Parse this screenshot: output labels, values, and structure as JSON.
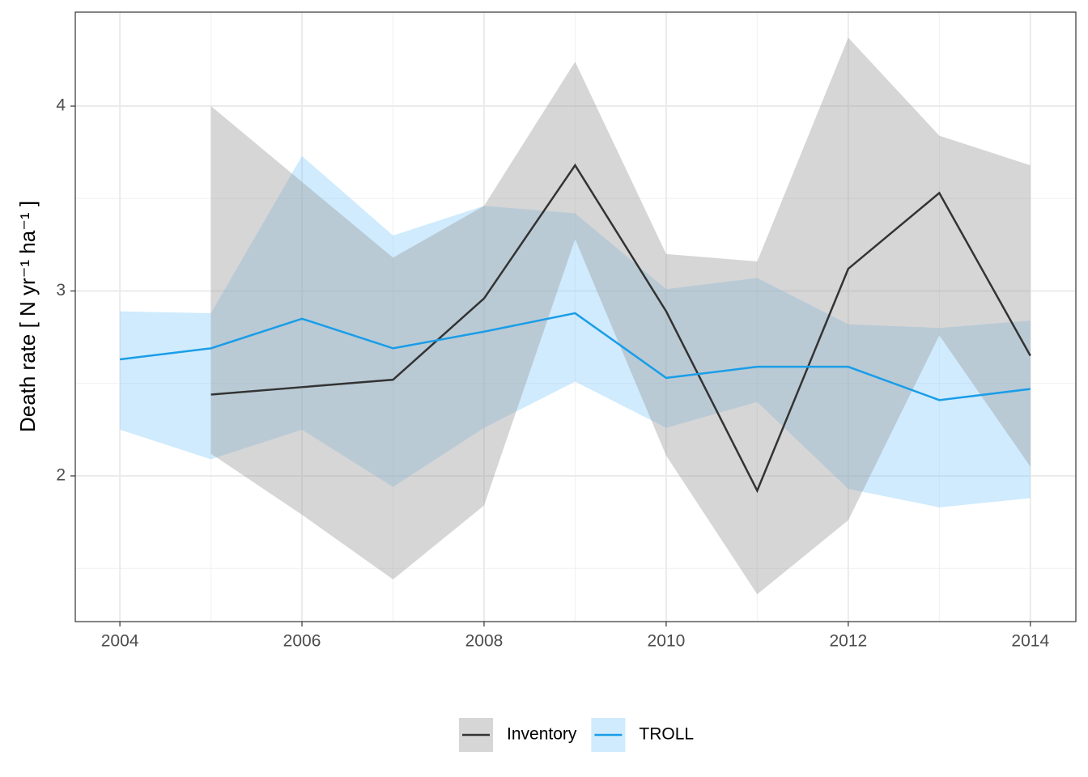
{
  "chart_data": {
    "type": "line",
    "y_label": "Death rate [ N yr⁻¹ ha⁻¹ ]",
    "x": [
      2004,
      2005,
      2006,
      2007,
      2008,
      2009,
      2010,
      2011,
      2012,
      2013,
      2014
    ],
    "series": [
      {
        "name": "Inventory",
        "color": "#333333",
        "band_color": "#999999",
        "values": [
          null,
          2.44,
          2.48,
          2.52,
          2.96,
          3.68,
          2.89,
          1.92,
          3.12,
          3.53,
          2.65
        ],
        "upper": [
          null,
          4.0,
          3.59,
          3.18,
          3.46,
          4.24,
          3.2,
          3.16,
          4.37,
          3.84,
          3.68
        ],
        "lower": [
          null,
          2.12,
          1.79,
          1.44,
          1.84,
          3.28,
          2.11,
          1.36,
          1.76,
          2.76,
          2.05
        ]
      },
      {
        "name": "TROLL",
        "color": "#1a9de8",
        "band_color": "#87cefa",
        "values": [
          2.63,
          2.69,
          2.85,
          2.69,
          2.78,
          2.88,
          2.53,
          2.59,
          2.59,
          2.41,
          2.47
        ],
        "upper": [
          2.89,
          2.88,
          3.73,
          3.3,
          3.46,
          3.42,
          3.01,
          3.07,
          2.82,
          2.8,
          2.84
        ],
        "lower": [
          2.25,
          2.09,
          2.25,
          1.94,
          2.26,
          2.51,
          2.26,
          2.4,
          1.93,
          1.83,
          1.88
        ]
      }
    ],
    "xlim": [
      2003.51,
      2014.5
    ],
    "xticks": [
      2004,
      2006,
      2008,
      2010,
      2012,
      2014
    ],
    "ylim": [
      1.212,
      4.508
    ],
    "yticks": [
      2,
      3,
      4
    ],
    "grid": true,
    "legend": "bottom"
  }
}
